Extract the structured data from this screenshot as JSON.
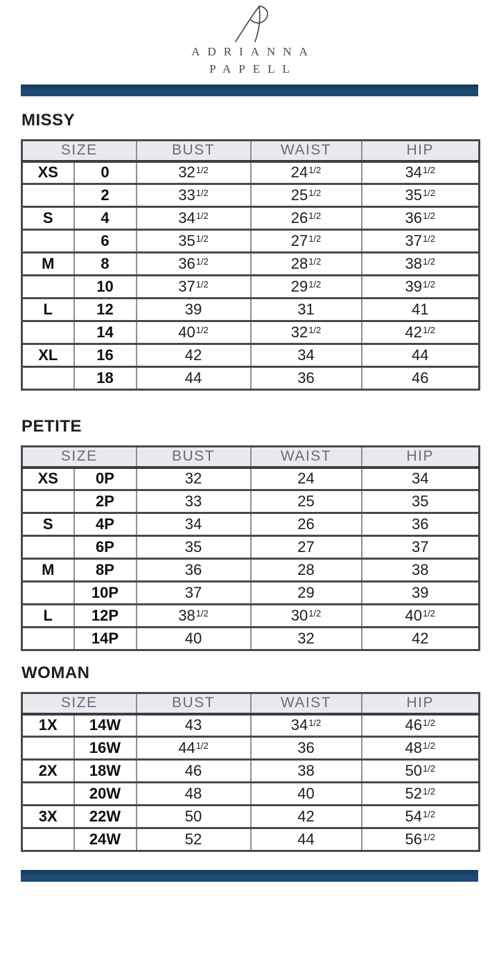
{
  "logo": {
    "monogram_icon": "ap-monogram",
    "line1": "ADRIANNA",
    "line2": "PAPELL"
  },
  "colors": {
    "accent_bar": "#1c4a72",
    "accent_bar_dark": "#133a5c",
    "header_bg": "#e9e9ef",
    "grid_line_dark": "#4a4a4a",
    "grid_line_mid": "#909090",
    "header_text": "#6b6b73",
    "body_text": "#161616",
    "brand_text": "#414b58"
  },
  "columns": {
    "size": "SIZE",
    "bust": "BUST",
    "waist": "WAIST",
    "hip": "HIP"
  },
  "sections": [
    {
      "title": "MISSY",
      "rows": [
        {
          "letter": "XS",
          "size": "0",
          "bust": "32 1/2",
          "waist": "24 1/2",
          "hip": "34 1/2"
        },
        {
          "letter": "",
          "size": "2",
          "bust": "33 1/2",
          "waist": "25 1/2",
          "hip": "35 1/2"
        },
        {
          "letter": "S",
          "size": "4",
          "bust": "34 1/2",
          "waist": "26 1/2",
          "hip": "36 1/2"
        },
        {
          "letter": "",
          "size": "6",
          "bust": "35 1/2",
          "waist": "27 1/2",
          "hip": "37 1/2"
        },
        {
          "letter": "M",
          "size": "8",
          "bust": "36 1/2",
          "waist": "28 1/2",
          "hip": "38 1/2"
        },
        {
          "letter": "",
          "size": "10",
          "bust": "37 1/2",
          "waist": "29 1/2",
          "hip": "39 1/2"
        },
        {
          "letter": "L",
          "size": "12",
          "bust": "39",
          "waist": "31",
          "hip": "41"
        },
        {
          "letter": "",
          "size": "14",
          "bust": "40 1/2",
          "waist": "32 1/2",
          "hip": "42 1/2"
        },
        {
          "letter": "XL",
          "size": "16",
          "bust": "42",
          "waist": "34",
          "hip": "44"
        },
        {
          "letter": "",
          "size": "18",
          "bust": "44",
          "waist": "36",
          "hip": "46"
        }
      ]
    },
    {
      "title": "PETITE",
      "rows": [
        {
          "letter": "XS",
          "size": "0P",
          "bust": "32",
          "waist": "24",
          "hip": "34"
        },
        {
          "letter": "",
          "size": "2P",
          "bust": "33",
          "waist": "25",
          "hip": "35"
        },
        {
          "letter": "S",
          "size": "4P",
          "bust": "34",
          "waist": "26",
          "hip": "36"
        },
        {
          "letter": "",
          "size": "6P",
          "bust": "35",
          "waist": "27",
          "hip": "37"
        },
        {
          "letter": "M",
          "size": "8P",
          "bust": "36",
          "waist": "28",
          "hip": "38"
        },
        {
          "letter": "",
          "size": "10P",
          "bust": "37",
          "waist": "29",
          "hip": "39"
        },
        {
          "letter": "L",
          "size": "12P",
          "bust": "38 1/2",
          "waist": "30 1/2",
          "hip": "40 1/2"
        },
        {
          "letter": "",
          "size": "14P",
          "bust": "40",
          "waist": "32",
          "hip": "42"
        }
      ]
    },
    {
      "title": "WOMAN",
      "rows": [
        {
          "letter": "1X",
          "size": "14W",
          "bust": "43",
          "waist": "34 1/2",
          "hip": "46 1/2"
        },
        {
          "letter": "",
          "size": "16W",
          "bust": "44 1/2",
          "waist": "36",
          "hip": "48 1/2"
        },
        {
          "letter": "2X",
          "size": "18W",
          "bust": "46",
          "waist": "38",
          "hip": "50 1/2"
        },
        {
          "letter": "",
          "size": "20W",
          "bust": "48",
          "waist": "40",
          "hip": "52 1/2"
        },
        {
          "letter": "3X",
          "size": "22W",
          "bust": "50",
          "waist": "42",
          "hip": "54 1/2"
        },
        {
          "letter": "",
          "size": "24W",
          "bust": "52",
          "waist": "44",
          "hip": "56 1/2"
        }
      ]
    }
  ]
}
